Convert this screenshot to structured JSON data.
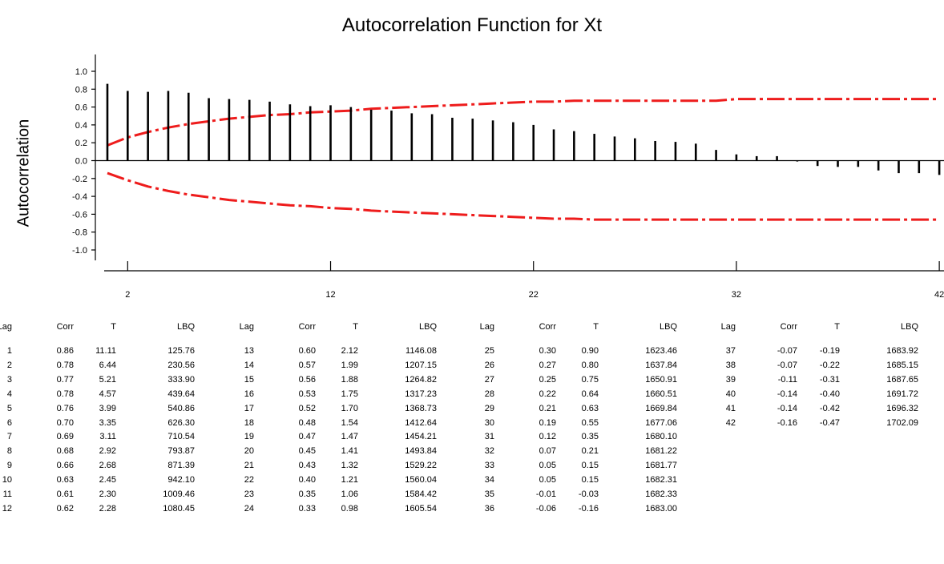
{
  "chart_data": {
    "type": "bar",
    "title": "Autocorrelation Function for Xt",
    "ylabel": "Autocorrelation",
    "xlabel": "",
    "ylim": [
      -1.0,
      1.0
    ],
    "yticks": [
      "1.0",
      "0.8",
      "0.6",
      "0.4",
      "0.2",
      "0.0",
      "-0.2",
      "-0.4",
      "-0.6",
      "-0.8",
      "-1.0"
    ],
    "xlim": [
      1,
      42
    ],
    "xticks": [
      "2",
      "12",
      "22",
      "32",
      "42"
    ],
    "grid": false,
    "lags": [
      1,
      2,
      3,
      4,
      5,
      6,
      7,
      8,
      9,
      10,
      11,
      12,
      13,
      14,
      15,
      16,
      17,
      18,
      19,
      20,
      21,
      22,
      23,
      24,
      25,
      26,
      27,
      28,
      29,
      30,
      31,
      32,
      33,
      34,
      35,
      36,
      37,
      38,
      39,
      40,
      41,
      42
    ],
    "corr": [
      0.86,
      0.78,
      0.77,
      0.78,
      0.76,
      0.7,
      0.69,
      0.68,
      0.66,
      0.63,
      0.61,
      0.62,
      0.6,
      0.57,
      0.56,
      0.53,
      0.52,
      0.48,
      0.47,
      0.45,
      0.43,
      0.4,
      0.35,
      0.33,
      0.3,
      0.27,
      0.25,
      0.22,
      0.21,
      0.19,
      0.12,
      0.07,
      0.05,
      0.05,
      -0.01,
      -0.06,
      -0.07,
      -0.07,
      -0.11,
      -0.14,
      -0.14,
      -0.16
    ],
    "upper_limit": [
      0.17,
      0.26,
      0.32,
      0.37,
      0.41,
      0.44,
      0.47,
      0.49,
      0.51,
      0.52,
      0.54,
      0.55,
      0.56,
      0.58,
      0.59,
      0.6,
      0.61,
      0.62,
      0.63,
      0.64,
      0.65,
      0.66,
      0.66,
      0.67,
      0.67,
      0.67,
      0.67,
      0.67,
      0.67,
      0.67,
      0.67,
      0.69,
      0.69,
      0.69,
      0.69,
      0.69,
      0.69,
      0.69,
      0.69,
      0.69,
      0.69,
      0.69
    ],
    "lower_limit": [
      -0.14,
      -0.22,
      -0.29,
      -0.34,
      -0.38,
      -0.41,
      -0.44,
      -0.46,
      -0.48,
      -0.5,
      -0.51,
      -0.53,
      -0.54,
      -0.56,
      -0.57,
      -0.58,
      -0.59,
      -0.6,
      -0.61,
      -0.62,
      -0.63,
      -0.64,
      -0.65,
      -0.65,
      -0.66,
      -0.66,
      -0.66,
      -0.66,
      -0.66,
      -0.66,
      -0.66,
      -0.66,
      -0.66,
      -0.66,
      -0.66,
      -0.66,
      -0.66,
      -0.66,
      -0.66,
      -0.66,
      -0.66,
      -0.66
    ],
    "colors": {
      "bars": "#000000",
      "limits": "#ee1c1c",
      "axis": "#000000"
    }
  },
  "table": {
    "headers": [
      "Lag",
      "Corr",
      "T",
      "LBQ"
    ],
    "rows": [
      [
        "1",
        "0.86",
        "11.11",
        "125.76"
      ],
      [
        "2",
        "0.78",
        "6.44",
        "230.56"
      ],
      [
        "3",
        "0.77",
        "5.21",
        "333.90"
      ],
      [
        "4",
        "0.78",
        "4.57",
        "439.64"
      ],
      [
        "5",
        "0.76",
        "3.99",
        "540.86"
      ],
      [
        "6",
        "0.70",
        "3.35",
        "626.30"
      ],
      [
        "7",
        "0.69",
        "3.11",
        "710.54"
      ],
      [
        "8",
        "0.68",
        "2.92",
        "793.87"
      ],
      [
        "9",
        "0.66",
        "2.68",
        "871.39"
      ],
      [
        "10",
        "0.63",
        "2.45",
        "942.10"
      ],
      [
        "11",
        "0.61",
        "2.30",
        "1009.46"
      ],
      [
        "12",
        "0.62",
        "2.28",
        "1080.45"
      ],
      [
        "13",
        "0.60",
        "2.12",
        "1146.08"
      ],
      [
        "14",
        "0.57",
        "1.99",
        "1207.15"
      ],
      [
        "15",
        "0.56",
        "1.88",
        "1264.82"
      ],
      [
        "16",
        "0.53",
        "1.75",
        "1317.23"
      ],
      [
        "17",
        "0.52",
        "1.70",
        "1368.73"
      ],
      [
        "18",
        "0.48",
        "1.54",
        "1412.64"
      ],
      [
        "19",
        "0.47",
        "1.47",
        "1454.21"
      ],
      [
        "20",
        "0.45",
        "1.41",
        "1493.84"
      ],
      [
        "21",
        "0.43",
        "1.32",
        "1529.22"
      ],
      [
        "22",
        "0.40",
        "1.21",
        "1560.04"
      ],
      [
        "23",
        "0.35",
        "1.06",
        "1584.42"
      ],
      [
        "24",
        "0.33",
        "0.98",
        "1605.54"
      ],
      [
        "25",
        "0.30",
        "0.90",
        "1623.46"
      ],
      [
        "26",
        "0.27",
        "0.80",
        "1637.84"
      ],
      [
        "27",
        "0.25",
        "0.75",
        "1650.91"
      ],
      [
        "28",
        "0.22",
        "0.64",
        "1660.51"
      ],
      [
        "29",
        "0.21",
        "0.63",
        "1669.84"
      ],
      [
        "30",
        "0.19",
        "0.55",
        "1677.06"
      ],
      [
        "31",
        "0.12",
        "0.35",
        "1680.10"
      ],
      [
        "32",
        "0.07",
        "0.21",
        "1681.22"
      ],
      [
        "33",
        "0.05",
        "0.15",
        "1681.77"
      ],
      [
        "34",
        "0.05",
        "0.15",
        "1682.31"
      ],
      [
        "35",
        "-0.01",
        "-0.03",
        "1682.33"
      ],
      [
        "36",
        "-0.06",
        "-0.16",
        "1683.00"
      ],
      [
        "37",
        "-0.07",
        "-0.19",
        "1683.92"
      ],
      [
        "38",
        "-0.07",
        "-0.22",
        "1685.15"
      ],
      [
        "39",
        "-0.11",
        "-0.31",
        "1687.65"
      ],
      [
        "40",
        "-0.14",
        "-0.40",
        "1691.72"
      ],
      [
        "41",
        "-0.14",
        "-0.42",
        "1696.32"
      ],
      [
        "42",
        "-0.16",
        "-0.47",
        "1702.09"
      ]
    ]
  }
}
